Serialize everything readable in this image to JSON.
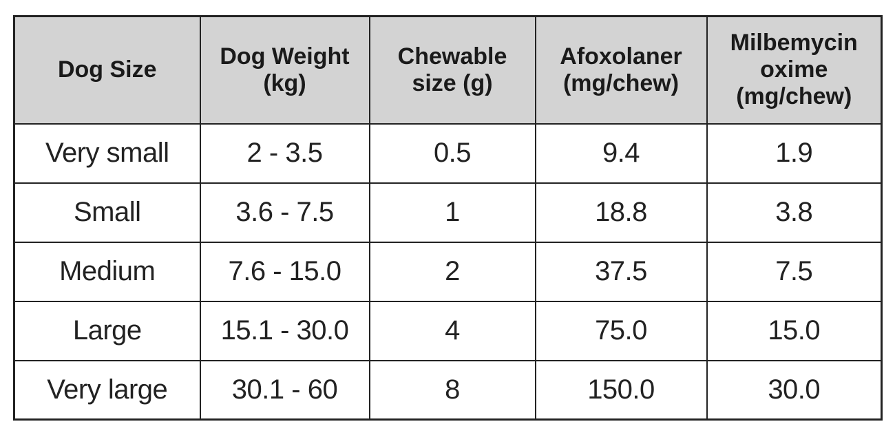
{
  "table": {
    "headers": [
      "Dog Size",
      "Dog Weight\n(kg)",
      "Chewable\nsize (g)",
      "Afoxolaner\n(mg/chew)",
      "Milbemycin\noxime\n(mg/chew)"
    ],
    "rows": [
      [
        "Very small",
        "2 - 3.5",
        "0.5",
        "9.4",
        "1.9"
      ],
      [
        "Small",
        "3.6 - 7.5",
        "1",
        "18.8",
        "3.8"
      ],
      [
        "Medium",
        "7.6 - 15.0",
        "2",
        "37.5",
        "7.5"
      ],
      [
        "Large",
        "15.1 - 30.0",
        "4",
        "75.0",
        "15.0"
      ],
      [
        "Very large",
        "30.1 - 60",
        "8",
        "150.0",
        "30.0"
      ]
    ]
  },
  "colors": {
    "header_background": "#d3d3d3",
    "border": "#222222",
    "text": "#1a1a1a"
  }
}
